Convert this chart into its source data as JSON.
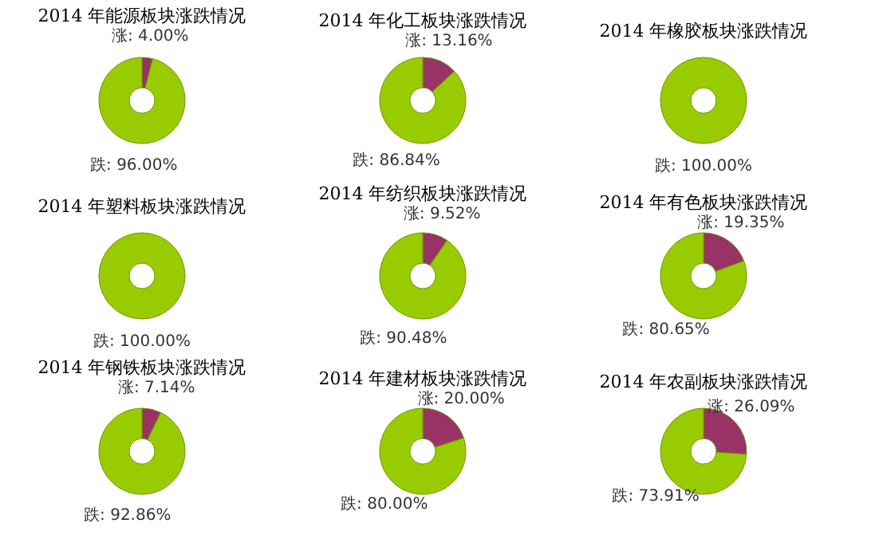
{
  "chart_data": [
    {
      "type": "donut",
      "title": "2014 年能源板块涨跌情况",
      "categories": [
        "涨",
        "跌"
      ],
      "values": [
        4.0,
        96.0
      ],
      "colors": [
        "#993366",
        "#99cc00"
      ],
      "value_labels": [
        "4.00%",
        "96.00%"
      ]
    },
    {
      "type": "donut",
      "title": "2014 年化工板块涨跌情况",
      "categories": [
        "涨",
        "跌"
      ],
      "values": [
        13.16,
        86.84
      ],
      "colors": [
        "#993366",
        "#99cc00"
      ],
      "value_labels": [
        "13.16%",
        "86.84%"
      ]
    },
    {
      "type": "donut",
      "title": "2014 年橡胶板块涨跌情况",
      "categories": [
        "跌"
      ],
      "values": [
        100.0
      ],
      "colors": [
        "#99cc00"
      ],
      "value_labels": [
        "100.00%"
      ]
    },
    {
      "type": "donut",
      "title": "2014 年塑料板块涨跌情况",
      "categories": [
        "跌"
      ],
      "values": [
        100.0
      ],
      "colors": [
        "#99cc00"
      ],
      "value_labels": [
        "100.00%"
      ]
    },
    {
      "type": "donut",
      "title": "2014 年纺织板块涨跌情况",
      "categories": [
        "涨",
        "跌"
      ],
      "values": [
        9.52,
        90.48
      ],
      "colors": [
        "#993366",
        "#99cc00"
      ],
      "value_labels": [
        "9.52%",
        "90.48%"
      ]
    },
    {
      "type": "donut",
      "title": "2014 年有色板块涨跌情况",
      "categories": [
        "涨",
        "跌"
      ],
      "values": [
        19.35,
        80.65
      ],
      "colors": [
        "#993366",
        "#99cc00"
      ],
      "value_labels": [
        "19.35%",
        "80.65%"
      ]
    },
    {
      "type": "donut",
      "title": "2014 年钢铁板块涨跌情况",
      "categories": [
        "涨",
        "跌"
      ],
      "values": [
        7.14,
        92.86
      ],
      "colors": [
        "#993366",
        "#99cc00"
      ],
      "value_labels": [
        "7.14%",
        "92.86%"
      ]
    },
    {
      "type": "donut",
      "title": "2014 年建材板块涨跌情况",
      "categories": [
        "涨",
        "跌"
      ],
      "values": [
        20.0,
        80.0
      ],
      "colors": [
        "#993366",
        "#99cc00"
      ],
      "value_labels": [
        "20.00%",
        "80.00%"
      ]
    },
    {
      "type": "donut",
      "title": "2014 年农副板块涨跌情况",
      "categories": [
        "涨",
        "跌"
      ],
      "values": [
        26.09,
        73.91
      ],
      "colors": [
        "#993366",
        "#99cc00"
      ],
      "value_labels": [
        "26.09%",
        "73.91%"
      ]
    }
  ]
}
